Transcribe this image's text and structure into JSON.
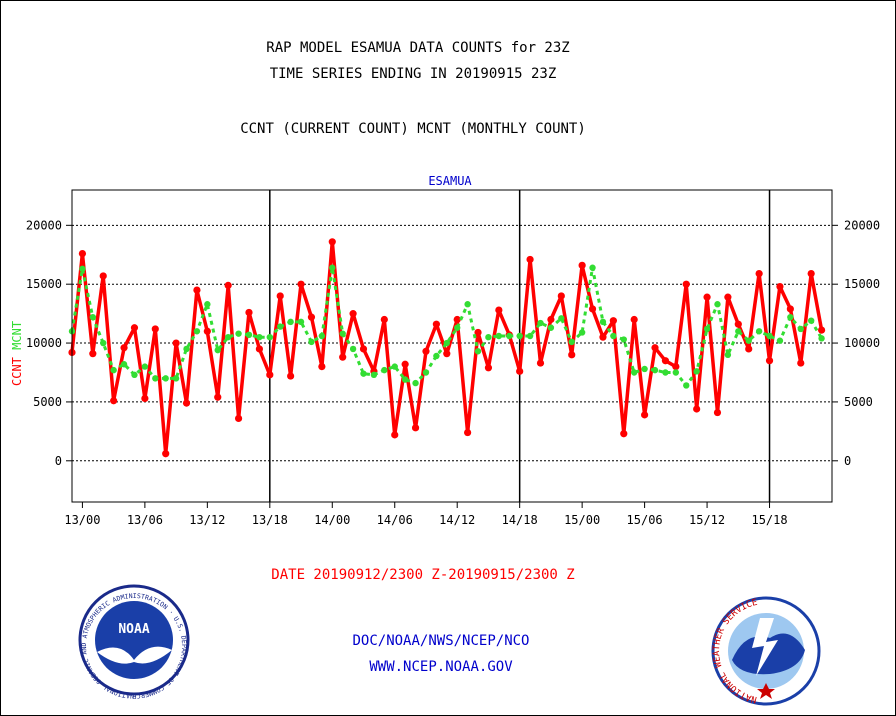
{
  "colors": {
    "ccnt": "#ff0000",
    "mcnt": "#33dd33",
    "text": "#000000",
    "panel_title": "#0000cc",
    "footer": "#0000cc",
    "date_range": "#ff0000"
  },
  "header": {
    "line1": "RAP MODEL ESAMUA DATA COUNTS for 23Z",
    "line2": "TIME SERIES ENDING IN 20190915 23Z",
    "line3": "CCNT (CURRENT COUNT) MCNT (MONTHLY COUNT)"
  },
  "footer": {
    "date_range": "DATE 20190912/2300 Z-20190915/2300 Z",
    "org": "DOC/NOAA/NWS/NCEP/NCO",
    "url": "WWW.NCEP.NOAA.GOV"
  },
  "logos": {
    "noaa_text": "NOAA",
    "noaa_ring": "NATIONAL OCEANIC AND ATMOSPHERIC ADMINISTRATION · U.S. DEPARTMENT OF COMMERCE ·",
    "nws_ring": "NATIONAL WEATHER SERVICE"
  },
  "chart_data": {
    "type": "line",
    "title": "ESAMUA",
    "ylabel_left": [
      "CCNT",
      "MCNT"
    ],
    "ylim": [
      -3500,
      23000
    ],
    "yticks": [
      0,
      5000,
      10000,
      15000,
      20000
    ],
    "grid": true,
    "x_range": [
      -1,
      72
    ],
    "xticks": [
      {
        "x": 0,
        "label": "13/00"
      },
      {
        "x": 6,
        "label": "13/06"
      },
      {
        "x": 12,
        "label": "13/12"
      },
      {
        "x": 18,
        "label": "13/18"
      },
      {
        "x": 24,
        "label": "14/00"
      },
      {
        "x": 30,
        "label": "14/06"
      },
      {
        "x": 36,
        "label": "14/12"
      },
      {
        "x": 42,
        "label": "14/18"
      },
      {
        "x": 48,
        "label": "15/00"
      },
      {
        "x": 54,
        "label": "15/06"
      },
      {
        "x": 60,
        "label": "15/12"
      },
      {
        "x": 66,
        "label": "15/18"
      }
    ],
    "day_boundaries": [
      18,
      42,
      66
    ],
    "x_start": -1,
    "series": [
      {
        "name": "CCNT",
        "color": "#ff0000",
        "values": [
          9200,
          17600,
          9100,
          15700,
          5100,
          9600,
          11300,
          5300,
          11200,
          600,
          10000,
          4900,
          14500,
          11000,
          5400,
          14900,
          3600,
          12600,
          9500,
          7300,
          14000,
          7200,
          15000,
          12200,
          8000,
          18600,
          8800,
          12500,
          9500,
          7600,
          12000,
          2200,
          8200,
          2800,
          9300,
          11600,
          9100,
          12000,
          2400,
          10900,
          7900,
          12800,
          10700,
          7600,
          17100,
          8300,
          12000,
          14000,
          9000,
          16600,
          12900,
          10500,
          11900,
          2300,
          12000,
          3900,
          9600,
          8500,
          8000,
          15000,
          4400,
          13900,
          4100,
          13900,
          11600,
          9500,
          15900,
          8500,
          14800,
          12900,
          8300,
          15900,
          11100
        ],
        "style": "solid"
      },
      {
        "name": "MCNT",
        "color": "#33dd33",
        "values": [
          11000,
          16300,
          12200,
          10000,
          7700,
          8200,
          7300,
          8000,
          7000,
          7000,
          7000,
          9500,
          11000,
          13300,
          9400,
          10500,
          10800,
          10700,
          10500,
          10500,
          11400,
          11800,
          11800,
          10100,
          10600,
          16400,
          10800,
          9500,
          7400,
          7300,
          7700,
          8000,
          6900,
          6600,
          7500,
          8900,
          10000,
          11300,
          13300,
          9300,
          10500,
          10600,
          10600,
          10600,
          10600,
          11700,
          11300,
          12100,
          10100,
          10900,
          16400,
          11800,
          10600,
          10300,
          7500,
          7800,
          7700,
          7500,
          7500,
          6400,
          7600,
          11200,
          13300,
          9000,
          11000,
          10200,
          11000,
          10600,
          10200,
          12200,
          11200,
          11900,
          10400
        ]
      }
    ]
  }
}
